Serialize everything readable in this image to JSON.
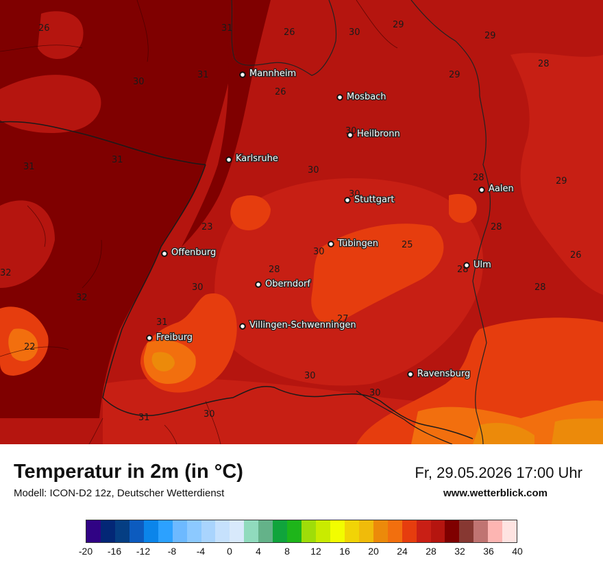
{
  "map": {
    "cities": [
      {
        "name": "Mannheim",
        "data_name": "city-mannheim"
      },
      {
        "name": "Mosbach",
        "data_name": "city-mosbach"
      },
      {
        "name": "Heilbronn",
        "data_name": "city-heilbronn"
      },
      {
        "name": "Karlsruhe",
        "data_name": "city-karlsruhe"
      },
      {
        "name": "Aalen",
        "data_name": "city-aalen"
      },
      {
        "name": "Stuttgart",
        "data_name": "city-stuttgart"
      },
      {
        "name": "Tübingen",
        "data_name": "city-tuebingen"
      },
      {
        "name": "Offenburg",
        "data_name": "city-offenburg"
      },
      {
        "name": "Ulm",
        "data_name": "city-ulm"
      },
      {
        "name": "Oberndorf",
        "data_name": "city-oberndorf"
      },
      {
        "name": "Villingen-Schwenningen",
        "data_name": "city-villingen-schwenningen"
      },
      {
        "name": "Freiburg",
        "data_name": "city-freiburg"
      },
      {
        "name": "Ravensburg",
        "data_name": "city-ravensburg"
      }
    ],
    "isotherm_labels": [
      "26",
      "31",
      "26",
      "30",
      "29",
      "29",
      "31",
      "30",
      "29",
      "28",
      "26",
      "30",
      "31",
      "31",
      "30",
      "28",
      "29",
      "30",
      "23",
      "28",
      "30",
      "25",
      "26",
      "32",
      "28",
      "28",
      "30",
      "32",
      "28",
      "27",
      "31",
      "22",
      "30",
      "30",
      "30",
      "31"
    ]
  },
  "header": {
    "title": "Temperatur in 2m (in °C)",
    "model": "Modell: ICON-D2 12z, Deutscher Wetterdienst",
    "datetime": "Fr, 29.05.2026 17:00 Uhr",
    "website": "www.wetterblick.com"
  },
  "legend": {
    "ticks": [
      "-20",
      "-16",
      "-12",
      "-8",
      "-4",
      "0",
      "4",
      "8",
      "12",
      "16",
      "20",
      "24",
      "28",
      "32",
      "36",
      "40"
    ],
    "colors": [
      "#300384",
      "#032776",
      "#053e83",
      "#0c5bbf",
      "#0b85ea",
      "#2ca1ff",
      "#6db9ff",
      "#8cc9ff",
      "#a9d4fd",
      "#c6e1fd",
      "#d8e9fb",
      "#90dbbd",
      "#64b289",
      "#10a43c",
      "#1eb51a",
      "#9fdd09",
      "#c9eb00",
      "#f2fd00",
      "#f1d406",
      "#f0bb0a",
      "#ec8a0a",
      "#f26f0e",
      "#e63d0e",
      "#c91f15",
      "#b5150f",
      "#7f0000",
      "#873832",
      "#c07472",
      "#fdb5b2",
      "#fee3e1"
    ]
  }
}
